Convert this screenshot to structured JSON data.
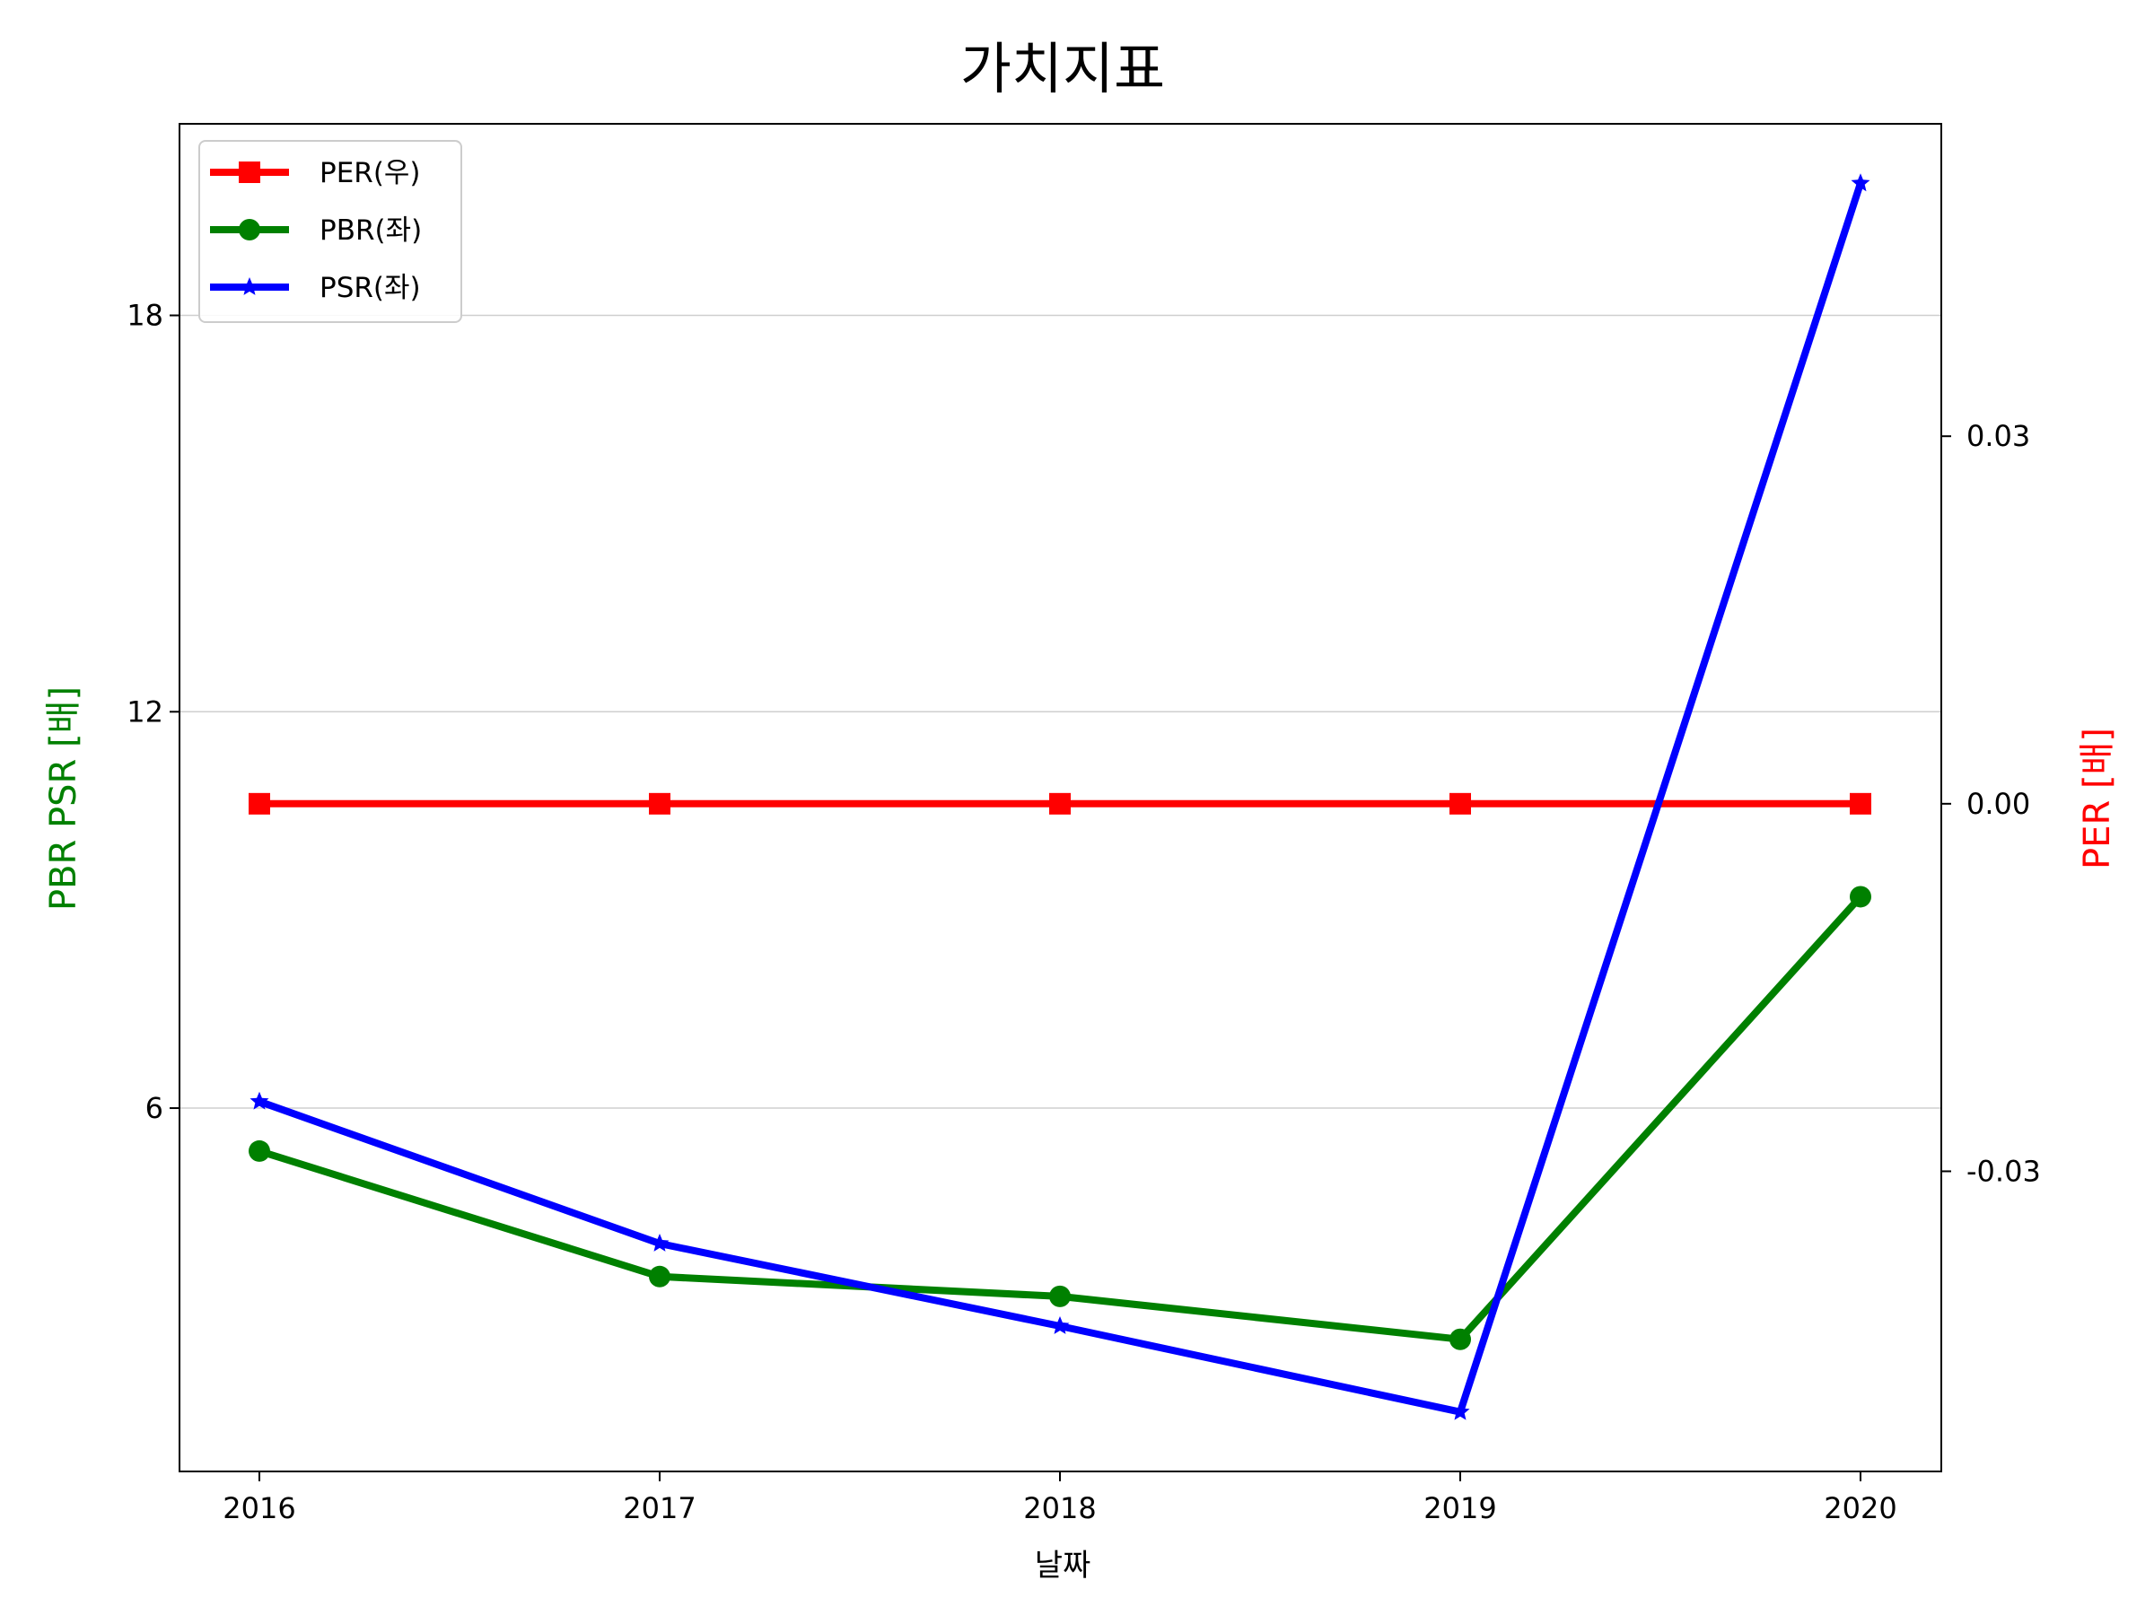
{
  "chart_data": {
    "type": "line",
    "title": "가치지표",
    "xlabel": "날짜",
    "ylabel_left": "PBR PSR [배]",
    "ylabel_right": "PER [배]",
    "x": [
      "2016",
      "2017",
      "2018",
      "2019",
      "2020"
    ],
    "left_axis": {
      "ylim": [
        0.5,
        20.9
      ],
      "ticks": [
        6,
        12,
        18
      ],
      "tick_labels": [
        "6",
        "12",
        "18"
      ],
      "grid": true,
      "label_color": "#008000"
    },
    "right_axis": {
      "ylim": [
        -0.0545,
        0.0555
      ],
      "ticks": [
        -0.03,
        0.0,
        0.03
      ],
      "tick_labels": [
        "-0.03",
        "0.00",
        "0.03"
      ],
      "label_color": "#ff0000"
    },
    "series": [
      {
        "name": "PER(우)",
        "axis": "right",
        "color": "#ff0000",
        "marker": "square",
        "values": [
          0.0,
          0.0,
          0.0,
          0.0,
          0.0
        ]
      },
      {
        "name": "PBR(좌)",
        "axis": "left",
        "color": "#008000",
        "marker": "circle",
        "values": [
          5.35,
          3.45,
          3.15,
          2.5,
          9.2
        ]
      },
      {
        "name": "PSR(좌)",
        "axis": "left",
        "color": "#0000ff",
        "marker": "star",
        "values": [
          6.1,
          3.95,
          2.7,
          1.4,
          20.0
        ]
      }
    ],
    "legend_position": "upper-left"
  }
}
